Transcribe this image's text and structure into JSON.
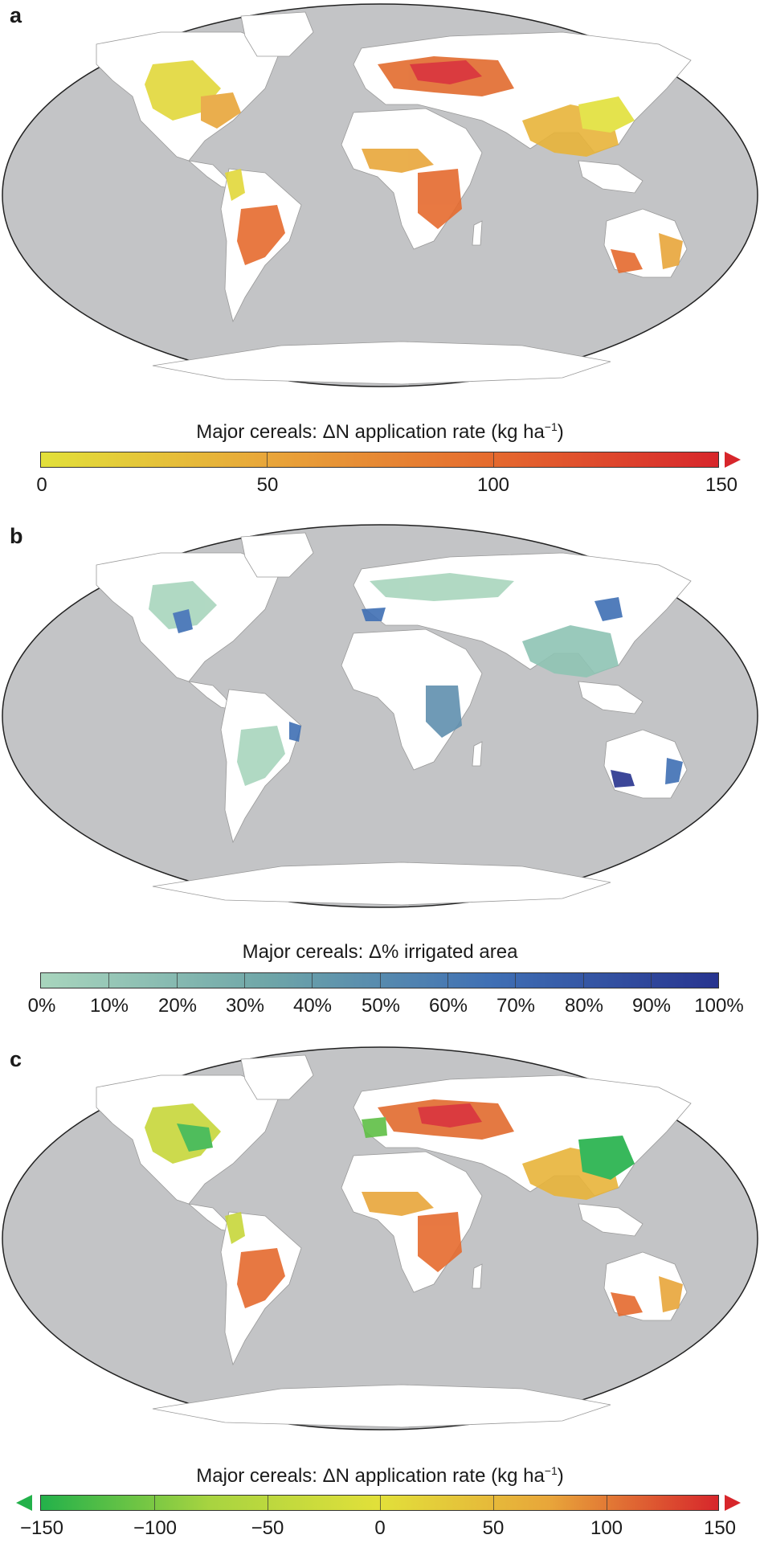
{
  "figure": {
    "panels": [
      {
        "label": "a",
        "colorbar": {
          "title_prefix": "Major cereals: ΔN application rate (kg ha",
          "title_sup": "−1",
          "title_suffix": ")",
          "ticks": [
            "0",
            "50",
            "100",
            "150"
          ],
          "scale": "sequential yellow-orange-red",
          "range": [
            0,
            150
          ],
          "extend": "max",
          "colors": [
            "#e2e03a",
            "#e8a63a",
            "#e56a2e",
            "#d7262b"
          ]
        }
      },
      {
        "label": "b",
        "colorbar": {
          "title": "Major cereals: Δ% irrigated area",
          "ticks": [
            "0%",
            "10%",
            "20%",
            "30%",
            "40%",
            "50%",
            "60%",
            "70%",
            "80%",
            "90%",
            "100%"
          ],
          "scale": "sequential green-blue",
          "range": [
            0,
            100
          ],
          "extend": "none",
          "colors": [
            "#a8d5bd",
            "#6fa6a8",
            "#3f6fb4",
            "#27348f"
          ]
        }
      },
      {
        "label": "c",
        "colorbar": {
          "title_prefix": "Major cereals: ΔN application rate (kg ha",
          "title_sup": "−1",
          "title_suffix": ")",
          "ticks": [
            "−150",
            "−100",
            "−50",
            "0",
            "50",
            "100",
            "150"
          ],
          "scale": "diverging green-yellow-red",
          "range": [
            -150,
            150
          ],
          "extend": "both",
          "colors": [
            "#23b14a",
            "#a8d440",
            "#e2e03a",
            "#e8a63a",
            "#d7262b"
          ]
        }
      }
    ],
    "map_colors": {
      "ocean": "#c3c4c6",
      "land": "#ffffff",
      "border": "#9a9a9a"
    }
  }
}
